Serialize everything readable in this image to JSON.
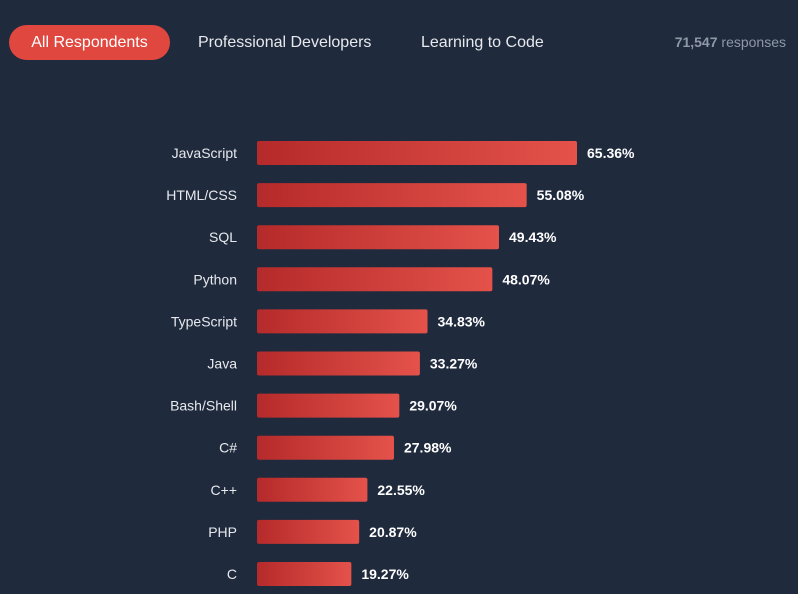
{
  "tabs": [
    {
      "label": "All Respondents",
      "active": true
    },
    {
      "label": "Professional Developers",
      "active": false
    },
    {
      "label": "Learning to Code",
      "active": false
    }
  ],
  "responses": {
    "count": "71,547",
    "label": "responses"
  },
  "colors": {
    "background": "#1f2a3d",
    "accent": "#e0473f",
    "bar_light": "#e4524a",
    "bar_dark": "#b52a2a"
  },
  "chart_data": {
    "type": "bar",
    "orientation": "horizontal",
    "categories": [
      "JavaScript",
      "HTML/CSS",
      "SQL",
      "Python",
      "TypeScript",
      "Java",
      "Bash/Shell",
      "C#",
      "C++",
      "PHP",
      "C"
    ],
    "values": [
      65.36,
      55.08,
      49.43,
      48.07,
      34.83,
      33.27,
      29.07,
      27.98,
      22.55,
      20.87,
      19.27
    ],
    "value_labels": [
      "65.36%",
      "55.08%",
      "49.43%",
      "48.07%",
      "34.83%",
      "33.27%",
      "29.07%",
      "27.98%",
      "22.55%",
      "20.87%",
      "19.27%"
    ],
    "xlim": [
      0,
      100
    ],
    "grid": false,
    "legend": "none"
  }
}
